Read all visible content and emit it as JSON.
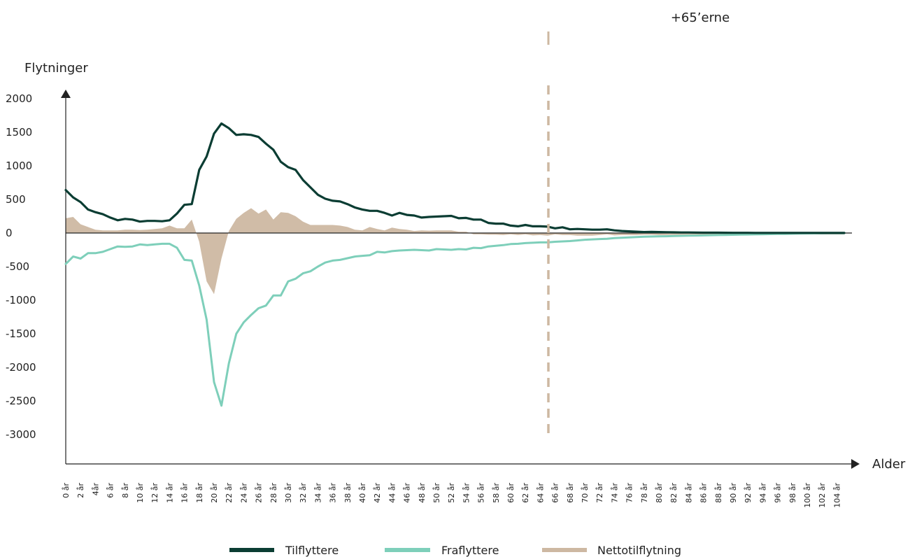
{
  "chart_data": {
    "type": "line",
    "ylabel": "Flytninger",
    "xlabel": "Alder",
    "ylim": [
      -3000,
      2000
    ],
    "yticks": [
      2000,
      1500,
      1000,
      500,
      0,
      -500,
      -1000,
      -1500,
      -2000,
      -2500,
      -3000
    ],
    "x_tick_labels": [
      "0 år",
      "2 år",
      "4år",
      "6 år",
      "8 år",
      "10 år",
      "12 år",
      "14 år",
      "16 år",
      "18 år",
      "20 år",
      "22 år",
      "24 år",
      "26 år",
      "28 år",
      "30 år",
      "32 år",
      "34 år",
      "36 år",
      "38 år",
      "40 år",
      "42 år",
      "44 år",
      "46 år",
      "48 år",
      "50 år",
      "52 år",
      "54 år",
      "56 år",
      "58 år",
      "60 år",
      "62 år",
      "64 år",
      "66 år",
      "68 år",
      "70 år",
      "72 år",
      "74 år",
      "76 år",
      "78 år",
      "80 år",
      "82 år",
      "84 år",
      "86 år",
      "88 år",
      "90 år",
      "92 år",
      "94 år",
      "96 år",
      "98 år",
      "100 år",
      "102 år",
      "104 år"
    ],
    "ages": [
      0,
      1,
      2,
      3,
      4,
      5,
      6,
      7,
      8,
      9,
      10,
      11,
      12,
      13,
      14,
      15,
      16,
      17,
      18,
      19,
      20,
      21,
      22,
      23,
      24,
      25,
      26,
      27,
      28,
      29,
      30,
      31,
      32,
      33,
      34,
      35,
      36,
      37,
      38,
      39,
      40,
      41,
      42,
      43,
      44,
      45,
      46,
      47,
      48,
      49,
      50,
      51,
      52,
      53,
      54,
      55,
      56,
      57,
      58,
      59,
      60,
      61,
      62,
      63,
      64,
      65,
      66,
      67,
      68,
      69,
      70,
      71,
      72,
      73,
      74,
      75,
      76,
      77,
      78,
      79,
      80,
      81,
      82,
      83,
      84,
      85,
      86,
      87,
      88,
      89,
      90,
      91,
      92,
      93,
      94,
      95,
      96,
      97,
      98,
      99,
      100,
      101,
      102,
      103,
      104,
      105
    ],
    "series": [
      {
        "name": "Tilflyttere",
        "color": "#0b3d33",
        "values": [
          640,
          530,
          460,
          350,
          310,
          280,
          230,
          190,
          210,
          200,
          170,
          180,
          180,
          175,
          190,
          290,
          420,
          430,
          940,
          1140,
          1480,
          1630,
          1560,
          1460,
          1470,
          1460,
          1430,
          1330,
          1240,
          1060,
          980,
          940,
          790,
          680,
          570,
          510,
          480,
          470,
          430,
          380,
          350,
          330,
          330,
          300,
          260,
          300,
          270,
          260,
          230,
          240,
          245,
          250,
          255,
          220,
          225,
          200,
          200,
          150,
          140,
          140,
          110,
          100,
          120,
          100,
          100,
          95,
          70,
          85,
          55,
          60,
          55,
          50,
          50,
          55,
          40,
          30,
          25,
          20,
          15,
          18,
          15,
          12,
          10,
          8,
          8,
          6,
          5,
          5,
          5,
          4,
          3,
          3,
          3,
          2,
          2,
          2,
          2,
          2,
          2,
          2,
          2,
          2,
          1,
          1,
          1,
          1
        ]
      },
      {
        "name": "Fraflyttere",
        "color": "#7ecfba",
        "values": [
          -460,
          -350,
          -380,
          -300,
          -300,
          -280,
          -240,
          -200,
          -205,
          -200,
          -170,
          -180,
          -170,
          -160,
          -160,
          -220,
          -400,
          -410,
          -780,
          -1290,
          -2220,
          -2570,
          -1940,
          -1500,
          -1330,
          -1220,
          -1120,
          -1080,
          -930,
          -930,
          -720,
          -680,
          -600,
          -570,
          -500,
          -440,
          -410,
          -400,
          -375,
          -350,
          -340,
          -330,
          -280,
          -290,
          -270,
          -260,
          -255,
          -250,
          -255,
          -260,
          -240,
          -245,
          -250,
          -240,
          -245,
          -220,
          -225,
          -200,
          -190,
          -180,
          -165,
          -160,
          -150,
          -145,
          -140,
          -140,
          -130,
          -125,
          -120,
          -110,
          -100,
          -95,
          -90,
          -85,
          -75,
          -70,
          -65,
          -60,
          -55,
          -52,
          -50,
          -48,
          -45,
          -42,
          -40,
          -38,
          -35,
          -32,
          -30,
          -28,
          -26,
          -24,
          -22,
          -20,
          -18,
          -16,
          -14,
          -12,
          -10,
          -8,
          -6,
          -5,
          -4,
          -3,
          -2,
          -2
        ]
      },
      {
        "name": "Nettotilflytning",
        "color": "#cdb8a2",
        "values": [
          220,
          240,
          130,
          90,
          50,
          40,
          40,
          40,
          50,
          50,
          45,
          50,
          60,
          70,
          110,
          70,
          70,
          200,
          -130,
          -720,
          -910,
          -380,
          30,
          210,
          300,
          370,
          290,
          350,
          200,
          310,
          300,
          250,
          170,
          120,
          120,
          120,
          120,
          110,
          90,
          50,
          40,
          90,
          60,
          40,
          80,
          60,
          50,
          30,
          40,
          35,
          40,
          40,
          40,
          20,
          20,
          -20,
          -20,
          -25,
          -25,
          -30,
          -20,
          -30,
          -20,
          -35,
          -30,
          -40,
          -20,
          -30,
          -30,
          -40,
          -40,
          -40,
          -30,
          -20,
          -35,
          -30,
          -30,
          -30,
          -25,
          -25,
          -30,
          -28,
          -26,
          -25,
          -24,
          -23,
          -22,
          -22,
          -21,
          -20,
          -20,
          -20,
          -20,
          -20,
          -20,
          -20,
          -20,
          -20,
          -20,
          -20,
          -20,
          -20,
          -20,
          -20,
          -20,
          -20
        ]
      }
    ],
    "annotation": {
      "label": "+65’erne",
      "from_age": 65
    },
    "legend_position": "bottom-center",
    "grid": false
  }
}
